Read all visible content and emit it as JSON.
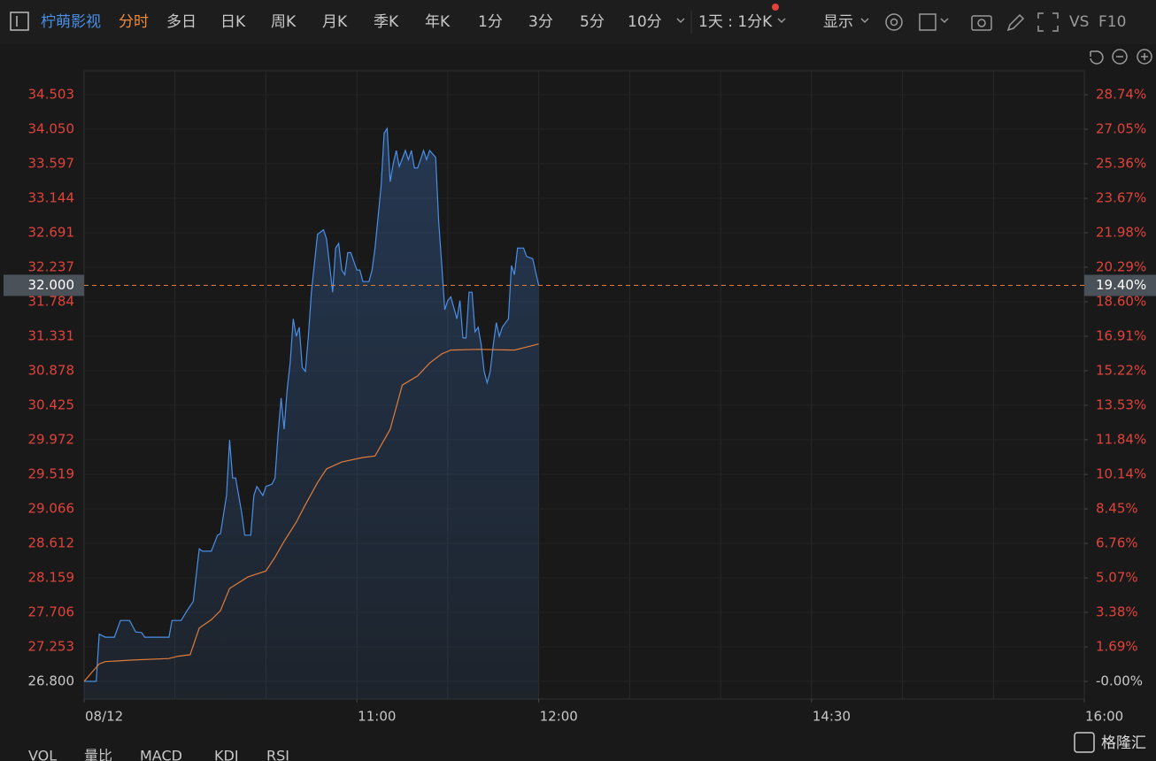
{
  "toolbar": {
    "name": "柠萌影视",
    "tabs": [
      "分时",
      "多日",
      "日K",
      "周K",
      "月K",
      "季K",
      "年K",
      "1分",
      "3分",
      "5分",
      "10分"
    ],
    "period": "1天 : 1分K",
    "display": "显示",
    "vs": "VS",
    "f10": "F10"
  },
  "indicators": [
    "VOL",
    "量比",
    "MACD",
    "KDJ",
    "RSI"
  ],
  "watermark": "格隆汇",
  "chart_data": {
    "type": "line",
    "xlim": [
      0,
      330
    ],
    "xticks": [
      {
        "value": 0,
        "label": "08/12"
      },
      {
        "value": 90,
        "label": "11:00"
      },
      {
        "value": 150,
        "label": "12:00"
      },
      {
        "value": 240,
        "label": "14:30"
      },
      {
        "value": 330,
        "label": "16:00"
      }
    ],
    "xgrid": [
      30,
      60,
      90,
      120,
      150,
      180,
      210,
      240,
      270,
      300
    ],
    "ylim": [
      26.568,
      34.817
    ],
    "yticks": [
      {
        "value": 26.8,
        "label": "26.800"
      },
      27.253,
      27.706,
      28.159,
      28.612,
      29.066,
      29.519,
      29.972,
      30.425,
      30.878,
      31.331,
      31.784,
      32.237,
      32.691,
      33.144,
      33.597,
      {
        "value": 34.05,
        "label": "34.050"
      },
      34.503
    ],
    "y2lim": [
      -0.866,
      29.914
    ],
    "y2ticks": [
      {
        "value": 0,
        "label": "-0.00%"
      },
      {
        "value": 1.69,
        "label": "1.69%"
      },
      {
        "value": 3.38,
        "label": "3.38%"
      },
      {
        "value": 5.07,
        "label": "5.07%"
      },
      {
        "value": 6.76,
        "label": "6.76%"
      },
      {
        "value": 8.45,
        "label": "8.45%"
      },
      {
        "value": 10.14,
        "label": "10.14%"
      },
      {
        "value": 11.84,
        "label": "11.84%"
      },
      {
        "value": 13.53,
        "label": "13.53%"
      },
      {
        "value": 15.22,
        "label": "15.22%"
      },
      {
        "value": 16.91,
        "label": "16.91%"
      },
      {
        "value": 18.6,
        "label": "18.60%"
      },
      {
        "value": 20.29,
        "label": "20.29%"
      },
      {
        "value": 21.98,
        "label": "21.98%"
      },
      {
        "value": 23.67,
        "label": "23.67%"
      },
      {
        "value": 25.36,
        "label": "25.36%"
      },
      {
        "value": 27.05,
        "label": "27.05%"
      },
      {
        "value": 28.74,
        "label": "28.74%"
      }
    ],
    "current": {
      "value": 32.0,
      "label": "32.000"
    },
    "current_pct": {
      "value": 19.4,
      "label": "19.40%"
    },
    "series": [
      {
        "color": "#4a8fe7",
        "area": true,
        "x": [
          0,
          4,
          5,
          7,
          10,
          12,
          15,
          17,
          19,
          20,
          28,
          29,
          32,
          34,
          36,
          38,
          39,
          42,
          44,
          45,
          47,
          48,
          49,
          50,
          52,
          53,
          55,
          56,
          57,
          59,
          60,
          62,
          63,
          64,
          65,
          66,
          67,
          68,
          69,
          70,
          71,
          72,
          73,
          74,
          75,
          77,
          79,
          80,
          81,
          82,
          83,
          84,
          85,
          86,
          87,
          88,
          90,
          91,
          92,
          94,
          95,
          96,
          98,
          99,
          100,
          101,
          102,
          103,
          104,
          106,
          107,
          108,
          109,
          110,
          111,
          112,
          113,
          114,
          116,
          117,
          118,
          119,
          120,
          121,
          123,
          124,
          125,
          126,
          127,
          128,
          129,
          130,
          131,
          132,
          133,
          134,
          135,
          136,
          137,
          138,
          140,
          141,
          142,
          143,
          145,
          146,
          148,
          150
        ],
        "values": [
          26.8,
          26.8,
          27.42,
          27.38,
          27.38,
          27.6,
          27.6,
          27.45,
          27.44,
          27.38,
          27.38,
          27.6,
          27.6,
          27.73,
          27.85,
          28.54,
          28.51,
          28.51,
          28.72,
          28.74,
          29.24,
          29.97,
          29.47,
          29.47,
          29.01,
          28.72,
          28.72,
          29.24,
          29.36,
          29.24,
          29.36,
          29.39,
          29.47,
          30.05,
          30.52,
          30.11,
          30.63,
          30.98,
          31.56,
          31.33,
          31.45,
          30.92,
          30.87,
          31.33,
          31.91,
          32.67,
          32.73,
          32.61,
          32.26,
          31.91,
          32.49,
          32.55,
          32.2,
          32.14,
          32.43,
          32.43,
          32.2,
          32.2,
          32.05,
          32.05,
          32.2,
          32.49,
          33.31,
          34.0,
          34.06,
          33.36,
          33.6,
          33.77,
          33.56,
          33.77,
          33.65,
          33.77,
          33.54,
          33.54,
          33.65,
          33.77,
          33.65,
          33.77,
          33.68,
          32.84,
          32.26,
          31.68,
          31.8,
          31.85,
          31.56,
          31.8,
          31.31,
          31.31,
          31.91,
          31.91,
          31.39,
          31.45,
          31.22,
          30.87,
          30.72,
          30.87,
          31.22,
          31.51,
          31.33,
          31.45,
          31.56,
          32.26,
          32.14,
          32.49,
          32.49,
          32.38,
          32.35,
          32.0
        ]
      },
      {
        "color": "#e07b39",
        "x": [
          0,
          5,
          7,
          16,
          28,
          31,
          35,
          38,
          42,
          45,
          48,
          54,
          60,
          63,
          66,
          70,
          73,
          77,
          80,
          85,
          92,
          96,
          101,
          105,
          110,
          114,
          118,
          121,
          130,
          142,
          146,
          150
        ],
        "values": [
          26.8,
          27.03,
          27.06,
          27.08,
          27.1,
          27.13,
          27.15,
          27.5,
          27.61,
          27.73,
          28.02,
          28.17,
          28.25,
          28.43,
          28.64,
          28.89,
          29.12,
          29.41,
          29.59,
          29.68,
          29.74,
          29.76,
          30.11,
          30.69,
          30.81,
          30.98,
          31.1,
          31.15,
          31.16,
          31.15,
          31.19,
          31.23
        ]
      }
    ]
  }
}
